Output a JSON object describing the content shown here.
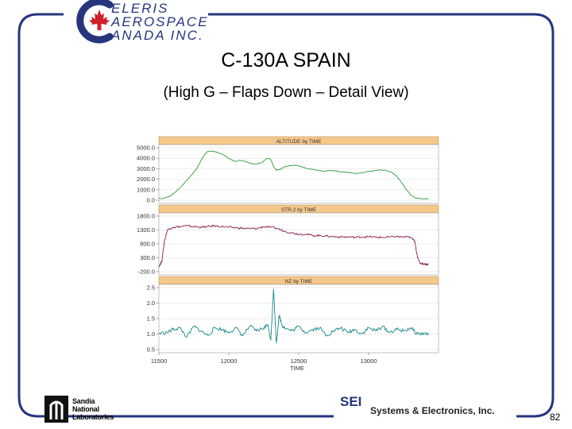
{
  "branding": {
    "company_logo_lines": [
      "ELERIS",
      "AEROSPACE",
      "ANADA  INC."
    ],
    "lab_logo_lines": [
      "Sandia",
      "National",
      "Laboratories"
    ],
    "footer_abbr": "SEI",
    "footer_company": "Systems & Electronics, Inc.",
    "accent": "#27357c",
    "logo_red": "#d0202a"
  },
  "slide": {
    "title": "C-130A SPAIN",
    "subtitle": "(High G – Flaps Down – Detail View)",
    "page_number": "82"
  },
  "chart_data": [
    {
      "type": "line",
      "title": "ALTITUDE by TIME",
      "color": "#2e9b3c",
      "xlim": [
        11500,
        13500
      ],
      "ylim": [
        0,
        5000
      ],
      "yticks": [
        0,
        1000,
        2000,
        3000,
        4000,
        5000
      ],
      "ytick_labels": [
        "0.0",
        "1000.0",
        "2000.0",
        "3000.0",
        "4000.0",
        "5000.0"
      ],
      "x": [
        11500,
        11530,
        11580,
        11620,
        11660,
        11700,
        11740,
        11770,
        11790,
        11810,
        11830,
        11850,
        11880,
        11920,
        11960,
        12000,
        12040,
        12080,
        12120,
        12160,
        12200,
        12240,
        12270,
        12300,
        12320,
        12340,
        12370,
        12400,
        12440,
        12480,
        12520,
        12560,
        12600,
        12640,
        12680,
        12720,
        12760,
        12800,
        12850,
        12900,
        12950,
        13000,
        13040,
        13080,
        13120,
        13160,
        13200,
        13230,
        13260,
        13300,
        13340,
        13380,
        13430
      ],
      "values": [
        200,
        150,
        400,
        800,
        1300,
        1900,
        2500,
        3000,
        3500,
        4000,
        4400,
        4650,
        4700,
        4550,
        4350,
        4000,
        3700,
        3800,
        3700,
        3500,
        3450,
        3600,
        4000,
        3900,
        3200,
        2850,
        2950,
        3200,
        3300,
        3350,
        3200,
        3000,
        2950,
        2850,
        2750,
        2850,
        2800,
        2700,
        2650,
        2550,
        2600,
        2750,
        2800,
        2900,
        2850,
        2700,
        2300,
        1800,
        1200,
        500,
        200,
        150,
        150
      ]
    },
    {
      "type": "line",
      "title": "STR.2 by TIME",
      "color": "#8b1a4f",
      "xlim": [
        11500,
        13500
      ],
      "ylim": [
        -200,
        1800
      ],
      "yticks": [
        -200,
        300,
        800,
        1300,
        1800
      ],
      "ytick_labels": [
        "-200.0",
        "300.0",
        "800.0",
        "1300.0",
        "1800.0"
      ],
      "x": [
        11500,
        11520,
        11540,
        11560,
        11600,
        11650,
        11700,
        11750,
        11800,
        11850,
        11900,
        11950,
        12000,
        12050,
        12100,
        12150,
        12200,
        12250,
        12300,
        12350,
        12400,
        12450,
        12500,
        12550,
        12600,
        12650,
        12700,
        12750,
        12800,
        12850,
        12900,
        12950,
        13000,
        13050,
        13100,
        13150,
        13200,
        13250,
        13300,
        13330,
        13350,
        13370,
        13400,
        13430
      ],
      "values": [
        0,
        150,
        900,
        1300,
        1400,
        1420,
        1450,
        1420,
        1400,
        1420,
        1450,
        1420,
        1400,
        1380,
        1360,
        1350,
        1350,
        1420,
        1400,
        1350,
        1250,
        1200,
        1150,
        1150,
        1100,
        1100,
        1080,
        1060,
        1050,
        1050,
        1040,
        1050,
        1060,
        1040,
        1030,
        1050,
        1060,
        1050,
        1040,
        900,
        300,
        100,
        80,
        60
      ]
    },
    {
      "type": "line",
      "title": "NZ by TIME",
      "color": "#1a8a8a",
      "xlim": [
        11500,
        13500
      ],
      "ylim": [
        0.5,
        2.5
      ],
      "yticks": [
        0.5,
        1.0,
        1.5,
        2.0,
        2.5
      ],
      "ytick_labels": [
        "0.5",
        "1.0",
        "1.5",
        "2.0",
        "2.5"
      ],
      "x": [
        11500,
        11560,
        11600,
        11650,
        11700,
        11750,
        11800,
        11850,
        11900,
        11950,
        12000,
        12050,
        12100,
        12150,
        12200,
        12250,
        12280,
        12300,
        12320,
        12340,
        12360,
        12380,
        12400,
        12450,
        12500,
        12550,
        12600,
        12650,
        12700,
        12750,
        12800,
        12850,
        12900,
        12950,
        13000,
        13050,
        13100,
        13150,
        13200,
        13250,
        13300,
        13350,
        13400,
        13430
      ],
      "values": [
        1.02,
        1.05,
        1.15,
        1.2,
        0.9,
        1.25,
        1.1,
        0.95,
        1.2,
        1.15,
        1.05,
        1.2,
        0.95,
        1.25,
        1.1,
        1.2,
        1.3,
        0.8,
        2.45,
        0.7,
        1.6,
        1.3,
        1.2,
        1.1,
        1.25,
        1.05,
        1.15,
        1.2,
        0.95,
        1.1,
        1.2,
        1.05,
        1.15,
        1.0,
        1.2,
        1.1,
        1.25,
        1.05,
        1.15,
        1.1,
        1.2,
        1.0,
        1.02,
        1.0
      ]
    }
  ],
  "x_axis": {
    "label": "TIME",
    "ticks": [
      11500,
      12000,
      12500,
      13000
    ],
    "tick_labels": [
      "11500",
      "12000",
      "12500",
      "13000"
    ]
  }
}
